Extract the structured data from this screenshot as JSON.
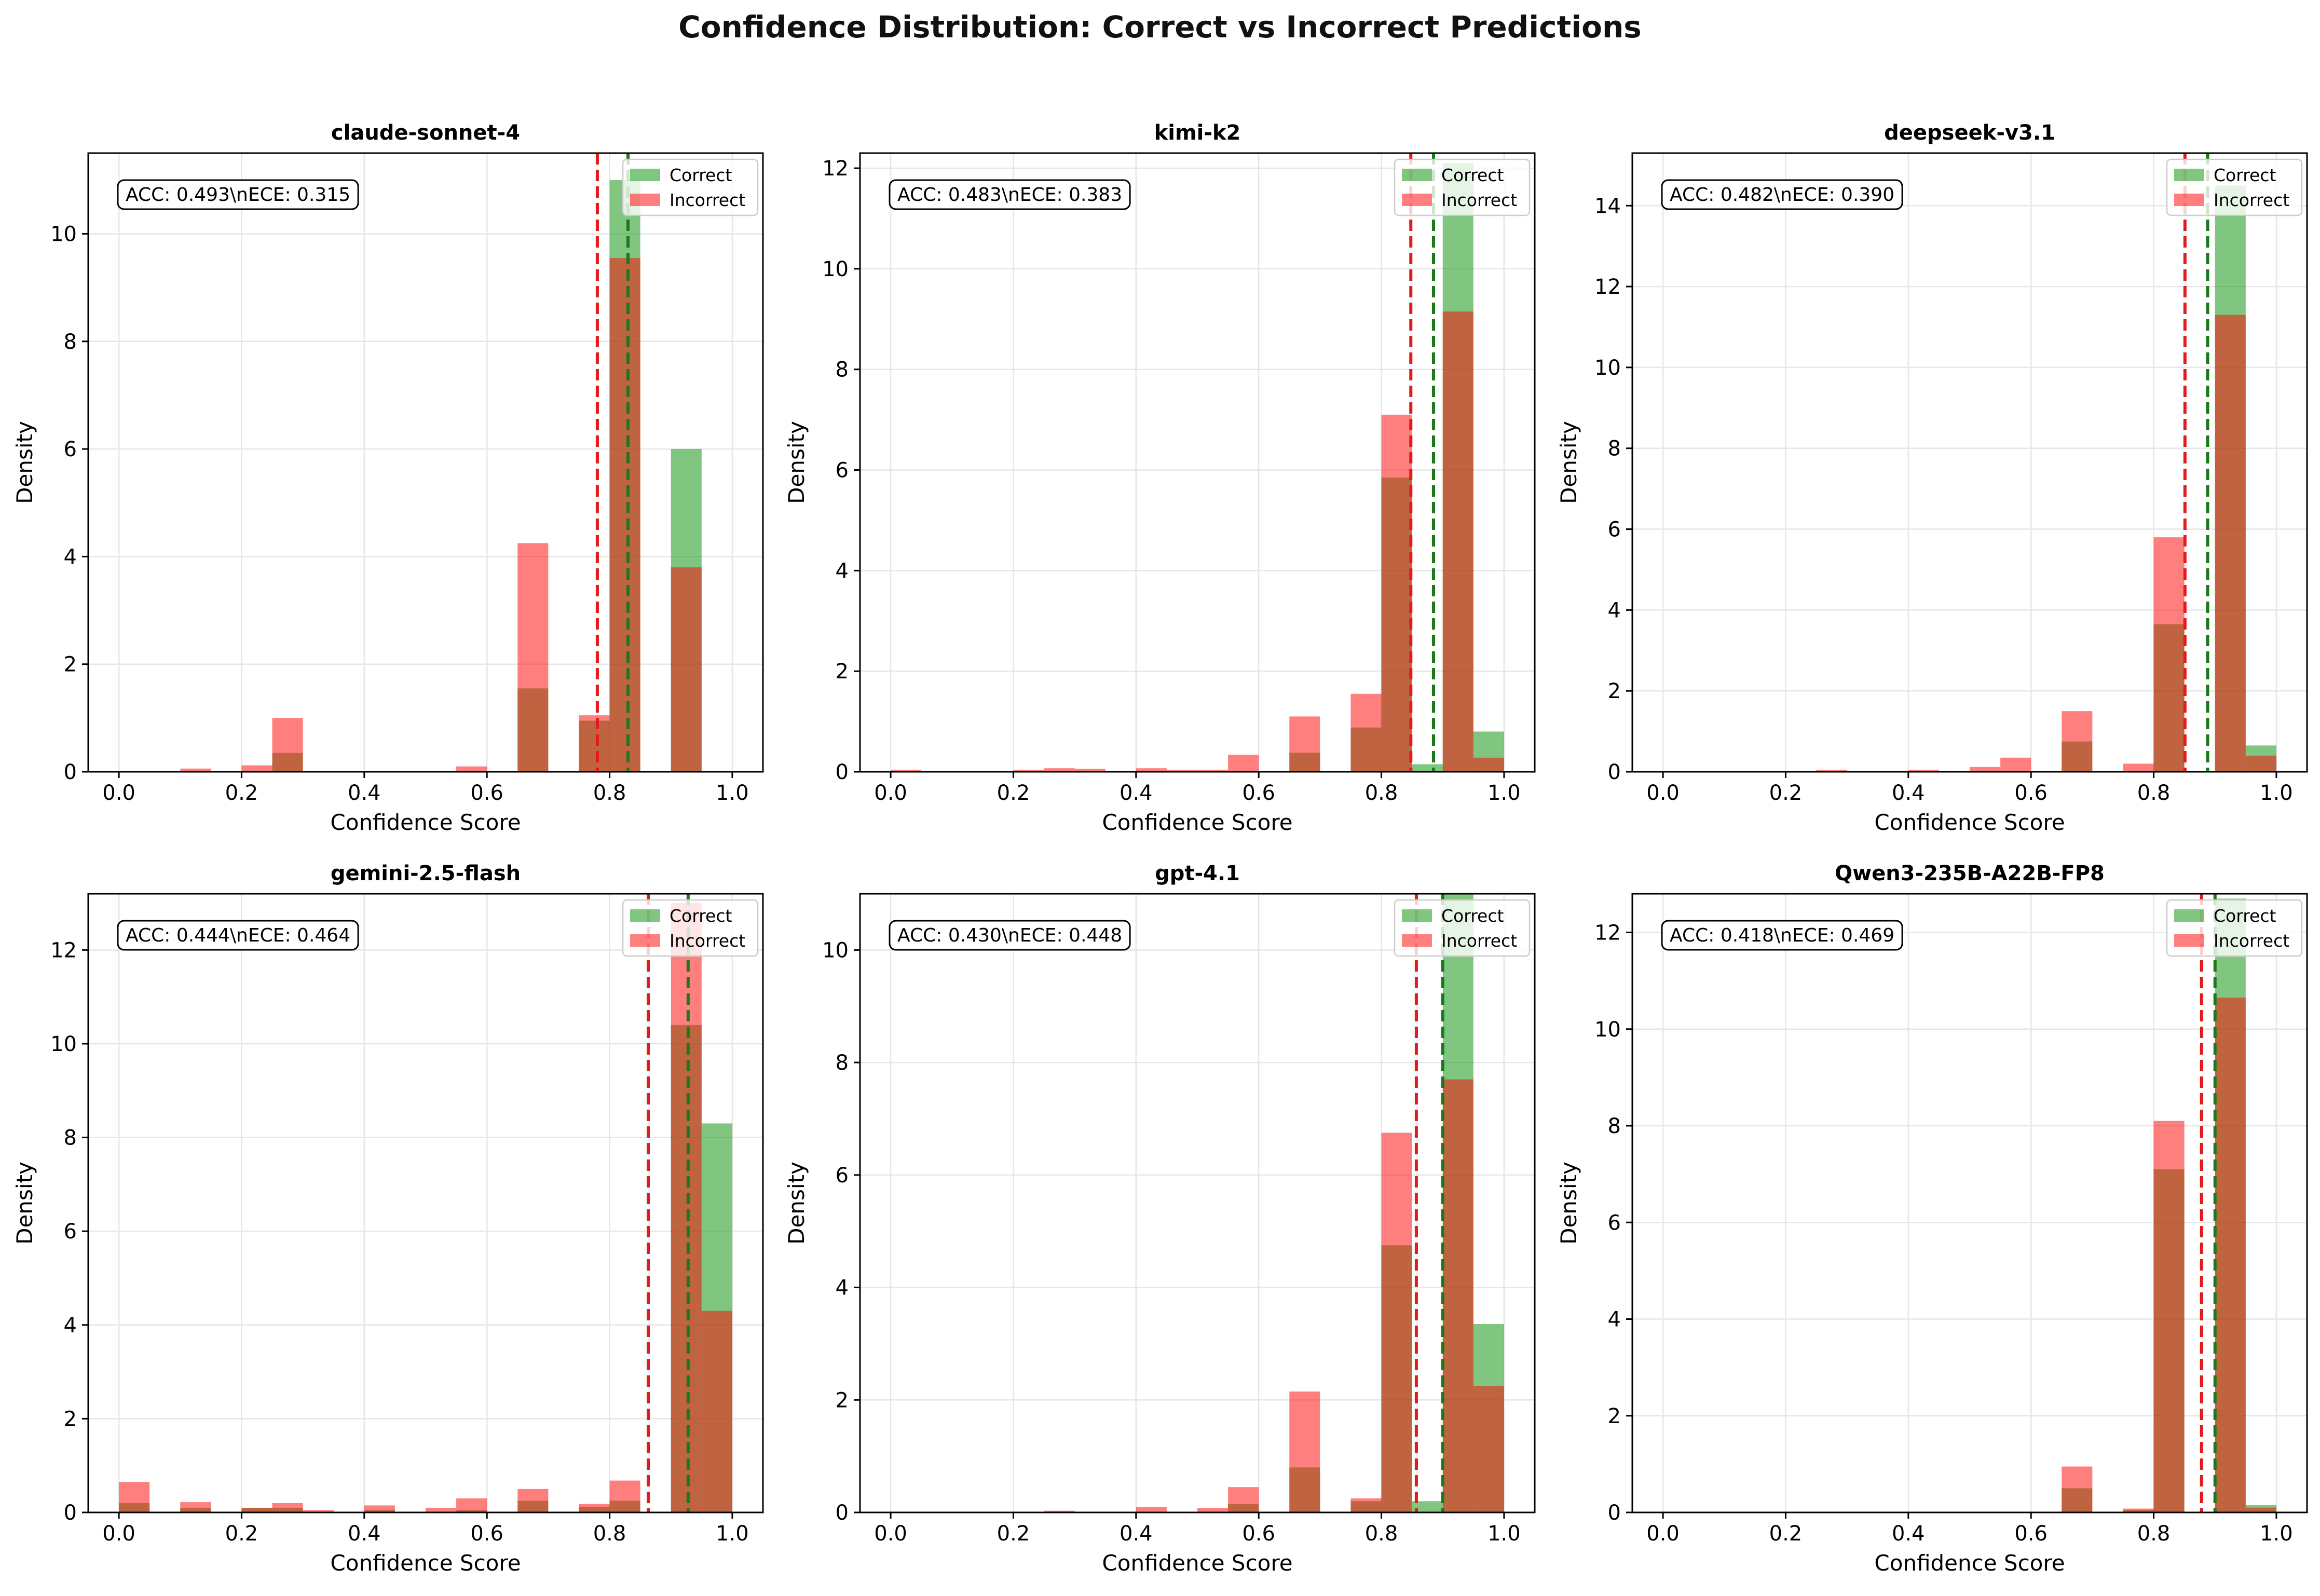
{
  "figure_title": "Confidence Distribution: Correct vs Incorrect Predictions",
  "colors": {
    "correct": "#2ca02c",
    "incorrect": "#ff0000",
    "overlap": "#bf5f3f",
    "correct_mean_line": "#1a7a1a",
    "incorrect_mean_line": "#e31a1c",
    "grid": "#e6e6e6"
  },
  "chart_data": [
    {
      "type": "bar",
      "title": "claude-sonnet-4",
      "xlabel": "Confidence Score",
      "ylabel": "Density",
      "annotation": "ACC: 0.493\\nECE: 0.315",
      "legend": [
        "Correct",
        "Incorrect"
      ],
      "legend_position": "upper right",
      "grid": true,
      "xlim": [
        -0.05,
        1.05
      ],
      "ylim": [
        0,
        11.5
      ],
      "xticks": [
        0.0,
        0.2,
        0.4,
        0.6,
        0.8,
        1.0
      ],
      "yticks": [
        0,
        2,
        4,
        6,
        8,
        10
      ],
      "bin_width": 0.05,
      "correct_bins": [
        [
          0.25,
          0.35
        ],
        [
          0.65,
          1.55
        ],
        [
          0.75,
          0.95
        ],
        [
          0.8,
          11.0
        ],
        [
          0.9,
          6.0
        ]
      ],
      "incorrect_bins": [
        [
          0.1,
          0.06
        ],
        [
          0.2,
          0.12
        ],
        [
          0.25,
          1.0
        ],
        [
          0.55,
          0.1
        ],
        [
          0.65,
          4.25
        ],
        [
          0.75,
          1.05
        ],
        [
          0.8,
          9.55
        ],
        [
          0.9,
          3.8
        ]
      ],
      "mean_correct": 0.83,
      "mean_incorrect": 0.78
    },
    {
      "type": "bar",
      "title": "kimi-k2",
      "xlabel": "Confidence Score",
      "ylabel": "Density",
      "annotation": "ACC: 0.483\\nECE: 0.383",
      "legend": [
        "Correct",
        "Incorrect"
      ],
      "legend_position": "upper right",
      "grid": true,
      "xlim": [
        -0.05,
        1.05
      ],
      "ylim": [
        0,
        12.3
      ],
      "xticks": [
        0.0,
        0.2,
        0.4,
        0.6,
        0.8,
        1.0
      ],
      "yticks": [
        0,
        2,
        4,
        6,
        8,
        10,
        12
      ],
      "bin_width": 0.05,
      "correct_bins": [
        [
          0.65,
          0.38
        ],
        [
          0.75,
          0.88
        ],
        [
          0.8,
          5.85
        ],
        [
          0.85,
          0.15
        ],
        [
          0.9,
          12.1
        ],
        [
          0.95,
          0.8
        ]
      ],
      "incorrect_bins": [
        [
          0.0,
          0.04
        ],
        [
          0.2,
          0.04
        ],
        [
          0.25,
          0.07
        ],
        [
          0.3,
          0.06
        ],
        [
          0.4,
          0.07
        ],
        [
          0.45,
          0.04
        ],
        [
          0.5,
          0.04
        ],
        [
          0.55,
          0.34
        ],
        [
          0.65,
          1.1
        ],
        [
          0.75,
          1.55
        ],
        [
          0.8,
          7.1
        ],
        [
          0.9,
          9.15
        ],
        [
          0.95,
          0.28
        ]
      ],
      "mean_correct": 0.885,
      "mean_incorrect": 0.848
    },
    {
      "type": "bar",
      "title": "deepseek-v3.1",
      "xlabel": "Confidence Score",
      "ylabel": "Density",
      "annotation": "ACC: 0.482\\nECE: 0.390",
      "legend": [
        "Correct",
        "Incorrect"
      ],
      "legend_position": "upper right",
      "grid": true,
      "xlim": [
        -0.05,
        1.05
      ],
      "ylim": [
        0,
        15.3
      ],
      "xticks": [
        0.0,
        0.2,
        0.4,
        0.6,
        0.8,
        1.0
      ],
      "yticks": [
        0,
        2,
        4,
        6,
        8,
        10,
        12,
        14
      ],
      "bin_width": 0.05,
      "correct_bins": [
        [
          0.65,
          0.75
        ],
        [
          0.8,
          3.65
        ],
        [
          0.9,
          14.5
        ],
        [
          0.95,
          0.65
        ]
      ],
      "incorrect_bins": [
        [
          0.25,
          0.04
        ],
        [
          0.4,
          0.05
        ],
        [
          0.5,
          0.12
        ],
        [
          0.55,
          0.35
        ],
        [
          0.65,
          1.5
        ],
        [
          0.75,
          0.2
        ],
        [
          0.8,
          5.8
        ],
        [
          0.9,
          11.3
        ],
        [
          0.95,
          0.4
        ]
      ],
      "mean_correct": 0.888,
      "mean_incorrect": 0.851
    },
    {
      "type": "bar",
      "title": "gemini-2.5-flash",
      "xlabel": "Confidence Score",
      "ylabel": "Density",
      "annotation": "ACC: 0.444\\nECE: 0.464",
      "legend": [
        "Correct",
        "Incorrect"
      ],
      "legend_position": "upper right",
      "grid": true,
      "xlim": [
        -0.05,
        1.05
      ],
      "ylim": [
        0,
        13.2
      ],
      "xticks": [
        0.0,
        0.2,
        0.4,
        0.6,
        0.8,
        1.0
      ],
      "yticks": [
        0,
        2,
        4,
        6,
        8,
        10,
        12
      ],
      "bin_width": 0.05,
      "correct_bins": [
        [
          0.0,
          0.2
        ],
        [
          0.1,
          0.1
        ],
        [
          0.2,
          0.1
        ],
        [
          0.25,
          0.1
        ],
        [
          0.4,
          0.05
        ],
        [
          0.55,
          0.05
        ],
        [
          0.65,
          0.25
        ],
        [
          0.75,
          0.12
        ],
        [
          0.8,
          0.25
        ],
        [
          0.9,
          10.4
        ],
        [
          0.95,
          8.3
        ]
      ],
      "incorrect_bins": [
        [
          0.0,
          0.65
        ],
        [
          0.1,
          0.22
        ],
        [
          0.2,
          0.1
        ],
        [
          0.25,
          0.2
        ],
        [
          0.3,
          0.05
        ],
        [
          0.4,
          0.15
        ],
        [
          0.5,
          0.1
        ],
        [
          0.55,
          0.3
        ],
        [
          0.65,
          0.5
        ],
        [
          0.75,
          0.18
        ],
        [
          0.8,
          0.68
        ],
        [
          0.9,
          13.0
        ],
        [
          0.95,
          4.3
        ]
      ],
      "mean_correct": 0.928,
      "mean_incorrect": 0.863
    },
    {
      "type": "bar",
      "title": "gpt-4.1",
      "xlabel": "Confidence Score",
      "ylabel": "Density",
      "annotation": "ACC: 0.430\\nECE: 0.448",
      "legend": [
        "Correct",
        "Incorrect"
      ],
      "legend_position": "upper right",
      "grid": true,
      "xlim": [
        -0.05,
        1.05
      ],
      "ylim": [
        0,
        11.0
      ],
      "xticks": [
        0.0,
        0.2,
        0.4,
        0.6,
        0.8,
        1.0
      ],
      "yticks": [
        0,
        2,
        4,
        6,
        8,
        10
      ],
      "bin_width": 0.05,
      "correct_bins": [
        [
          0.55,
          0.15
        ],
        [
          0.65,
          0.8
        ],
        [
          0.75,
          0.2
        ],
        [
          0.8,
          4.75
        ],
        [
          0.85,
          0.2
        ],
        [
          0.9,
          11.0
        ],
        [
          0.95,
          3.35
        ]
      ],
      "incorrect_bins": [
        [
          0.25,
          0.03
        ],
        [
          0.4,
          0.1
        ],
        [
          0.5,
          0.08
        ],
        [
          0.55,
          0.45
        ],
        [
          0.65,
          2.15
        ],
        [
          0.75,
          0.25
        ],
        [
          0.8,
          6.75
        ],
        [
          0.9,
          7.7
        ],
        [
          0.95,
          2.25
        ]
      ],
      "mean_correct": 0.9,
      "mean_incorrect": 0.857
    },
    {
      "type": "bar",
      "title": "Qwen3-235B-A22B-FP8",
      "xlabel": "Confidence Score",
      "ylabel": "Density",
      "annotation": "ACC: 0.418\\nECE: 0.469",
      "legend": [
        "Correct",
        "Incorrect"
      ],
      "legend_position": "upper right",
      "grid": true,
      "xlim": [
        -0.05,
        1.05
      ],
      "ylim": [
        0,
        12.8
      ],
      "xticks": [
        0.0,
        0.2,
        0.4,
        0.6,
        0.8,
        1.0
      ],
      "yticks": [
        0,
        2,
        4,
        6,
        8,
        10,
        12
      ],
      "bin_width": 0.05,
      "correct_bins": [
        [
          0.65,
          0.5
        ],
        [
          0.75,
          0.05
        ],
        [
          0.8,
          7.1
        ],
        [
          0.9,
          12.7
        ],
        [
          0.95,
          0.15
        ]
      ],
      "incorrect_bins": [
        [
          0.65,
          0.95
        ],
        [
          0.75,
          0.08
        ],
        [
          0.8,
          8.1
        ],
        [
          0.9,
          10.65
        ],
        [
          0.95,
          0.1
        ]
      ],
      "mean_correct": 0.9,
      "mean_incorrect": 0.878
    }
  ]
}
